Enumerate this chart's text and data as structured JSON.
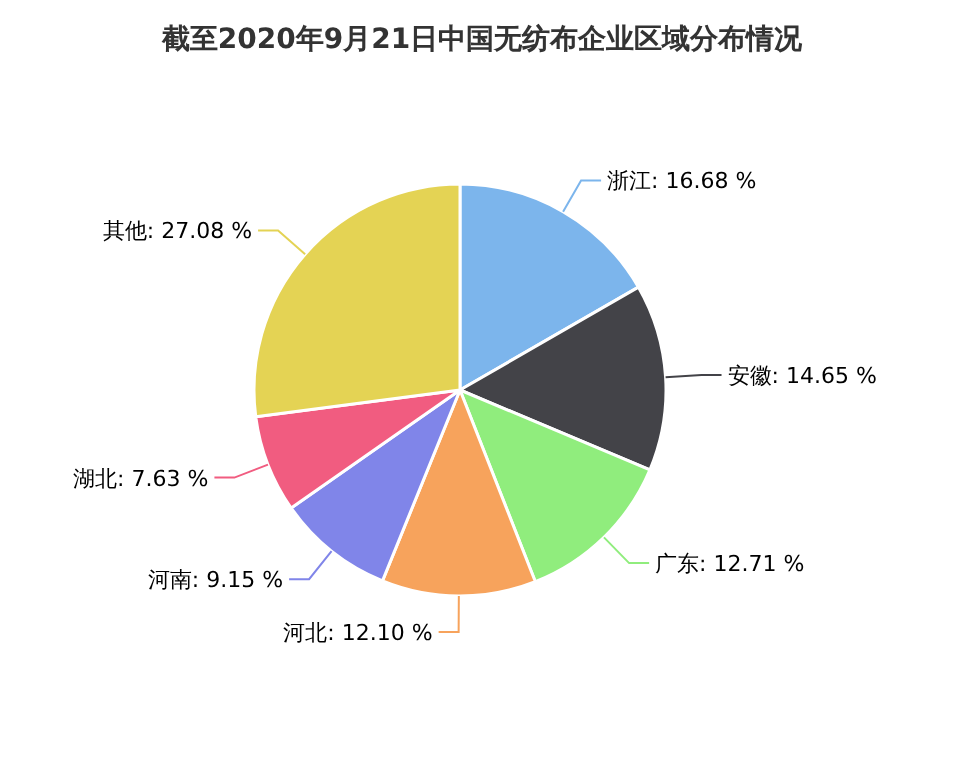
{
  "chart_data": {
    "type": "pie",
    "title": "截至2020年9月21日中国无纺布企业区域分布情况",
    "categories": [
      "浙江",
      "安徽",
      "广东",
      "河北",
      "河南",
      "湖北",
      "其他"
    ],
    "values": [
      16.68,
      14.65,
      12.71,
      12.1,
      9.15,
      7.63,
      27.08
    ],
    "value_labels": [
      "16.68 %",
      "14.65 %",
      "12.71 %",
      "12.10 %",
      "9.15 %",
      "7.63 %",
      "27.08 %"
    ],
    "colors": [
      "#7cb5ec",
      "#434348",
      "#90ed7d",
      "#f7a35c",
      "#8085e9",
      "#f15c80",
      "#e4d354"
    ]
  }
}
